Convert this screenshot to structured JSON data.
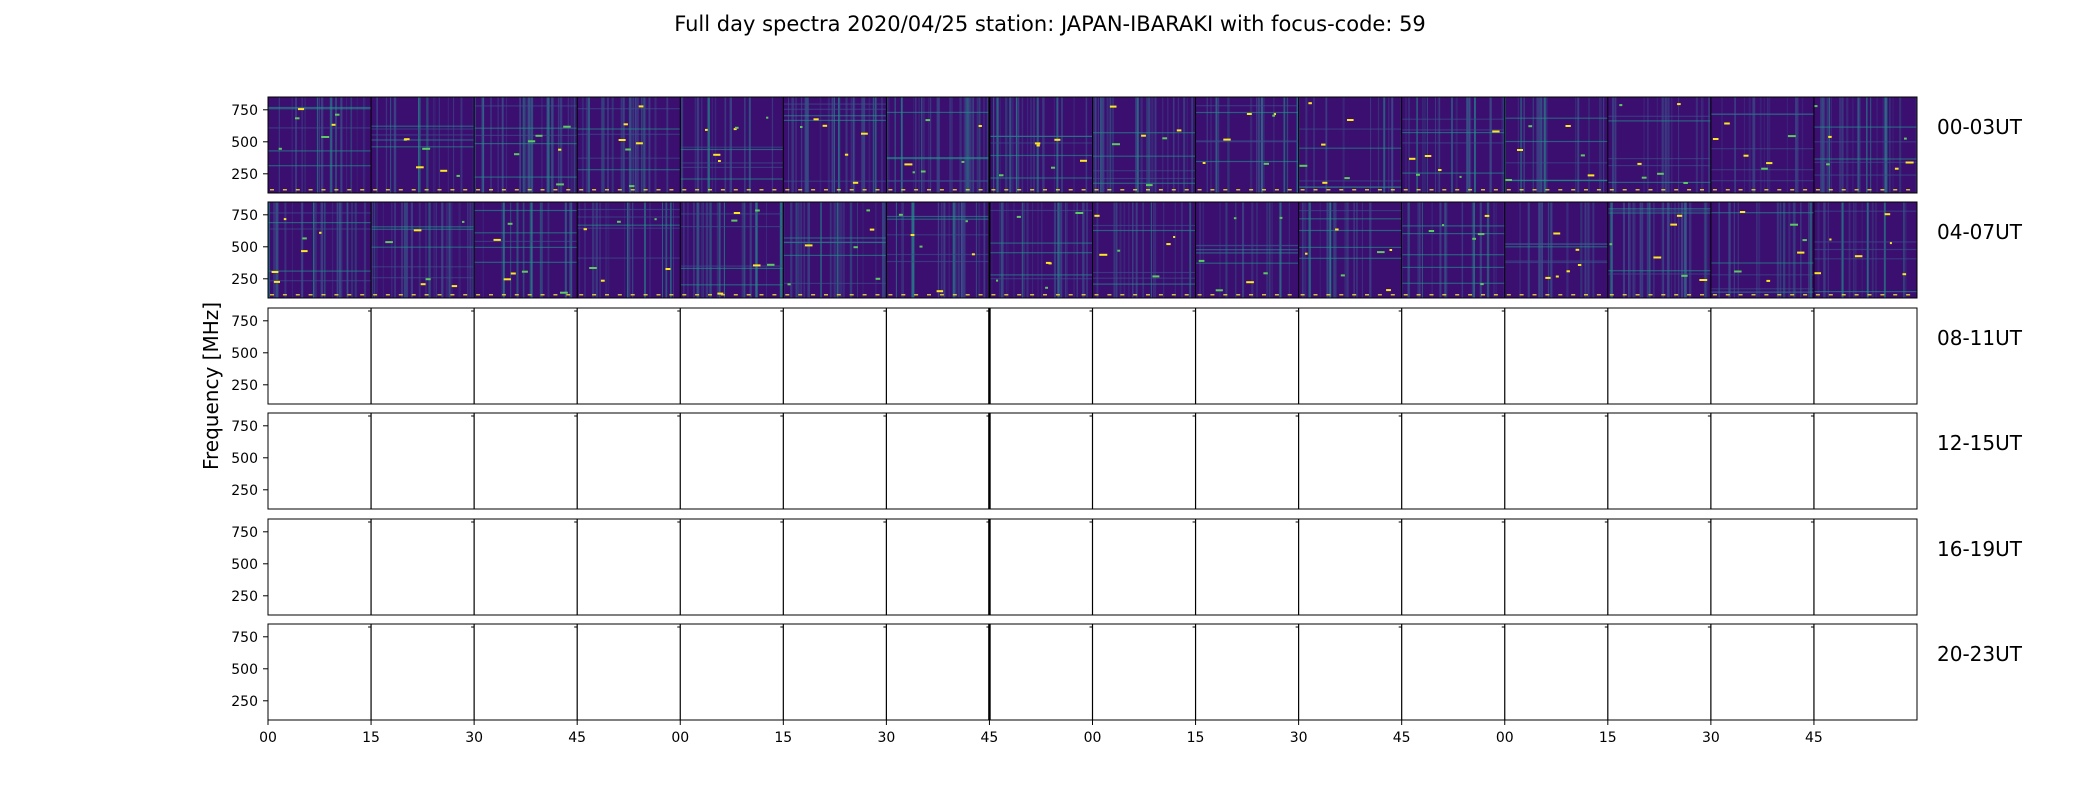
{
  "chart_data": {
    "type": "heatmap",
    "title": "Full day spectra 2020/04/25 station: JAPAN-IBARAKI with focus-code: 59",
    "ylabel": "Frequency [MHz]",
    "xlabel": "",
    "y_ticks": [
      "750",
      "500",
      "250"
    ],
    "x_tick_labels": [
      "00",
      "15",
      "30",
      "45",
      "00",
      "15",
      "30",
      "45",
      "00",
      "15",
      "30",
      "45",
      "00",
      "15",
      "30",
      "45"
    ],
    "rows": [
      {
        "label": "00-03UT",
        "has_data": true
      },
      {
        "label": "04-07UT",
        "has_data": true
      },
      {
        "label": "08-11UT",
        "has_data": false
      },
      {
        "label": "12-15UT",
        "has_data": false
      },
      {
        "label": "16-19UT",
        "has_data": false
      },
      {
        "label": "20-23UT",
        "has_data": false
      }
    ],
    "colormap": [
      "#440154",
      "#3b528b",
      "#21918c",
      "#5ec962",
      "#fde725"
    ],
    "background_color": "#3b0f70"
  }
}
